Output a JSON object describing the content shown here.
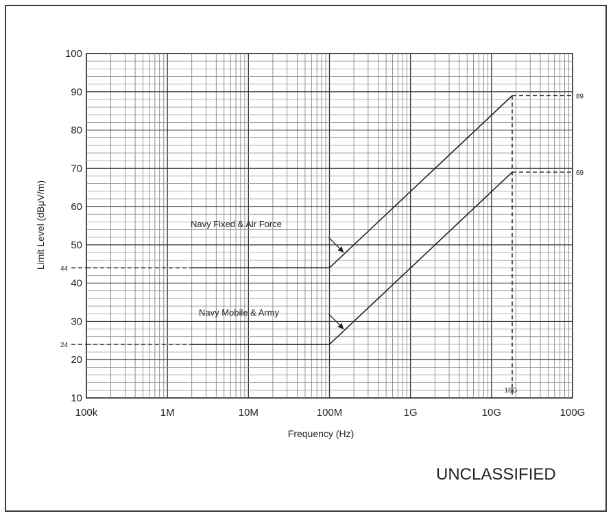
{
  "chart_data": {
    "type": "line",
    "xscale": "log",
    "xlim": [
      100000,
      100000000000
    ],
    "ylim": [
      10,
      100
    ],
    "xlabel": "Frequency (Hz)",
    "ylabel": "Limit Level (dBμV/m)",
    "grid": true,
    "x_ticks": [
      {
        "value": 100000,
        "label": "100k"
      },
      {
        "value": 1000000,
        "label": "1M"
      },
      {
        "value": 10000000,
        "label": "10M"
      },
      {
        "value": 100000000,
        "label": "100M"
      },
      {
        "value": 1000000000,
        "label": "1G"
      },
      {
        "value": 10000000000,
        "label": "10G"
      },
      {
        "value": 100000000000,
        "label": "100G"
      }
    ],
    "y_ticks": [
      10,
      20,
      30,
      40,
      50,
      60,
      70,
      80,
      90,
      100
    ],
    "series": [
      {
        "name": "Navy Fixed & Air Force",
        "x": [
          2000000,
          100000000,
          18000000000
        ],
        "y": [
          44,
          44,
          89
        ],
        "extension_left": {
          "x": [
            100000,
            2000000
          ],
          "y": [
            44,
            44
          ]
        },
        "extension_right": {
          "x": [
            18000000000,
            100000000000
          ],
          "y": [
            89,
            89
          ]
        },
        "arrow_to": {
          "x": 150000000,
          "y": 48
        }
      },
      {
        "name": "Navy Mobile & Army",
        "x": [
          2000000,
          100000000,
          18000000000
        ],
        "y": [
          24,
          24,
          69
        ],
        "extension_left": {
          "x": [
            100000,
            2000000
          ],
          "y": [
            24,
            24
          ]
        },
        "extension_right": {
          "x": [
            18000000000,
            100000000000
          ],
          "y": [
            69,
            69
          ]
        },
        "arrow_to": {
          "x": 150000000,
          "y": 28
        }
      }
    ],
    "vertical_marker": {
      "x": 18000000000,
      "label": "18G"
    },
    "annotations": [
      {
        "text": "44",
        "y": 44,
        "side": "left"
      },
      {
        "text": "24",
        "y": 24,
        "side": "left"
      },
      {
        "text": "89",
        "y": 89,
        "side": "right"
      },
      {
        "text": "69",
        "y": 69,
        "side": "right"
      }
    ]
  },
  "footer": {
    "classification": "UNCLASSIFIED"
  }
}
